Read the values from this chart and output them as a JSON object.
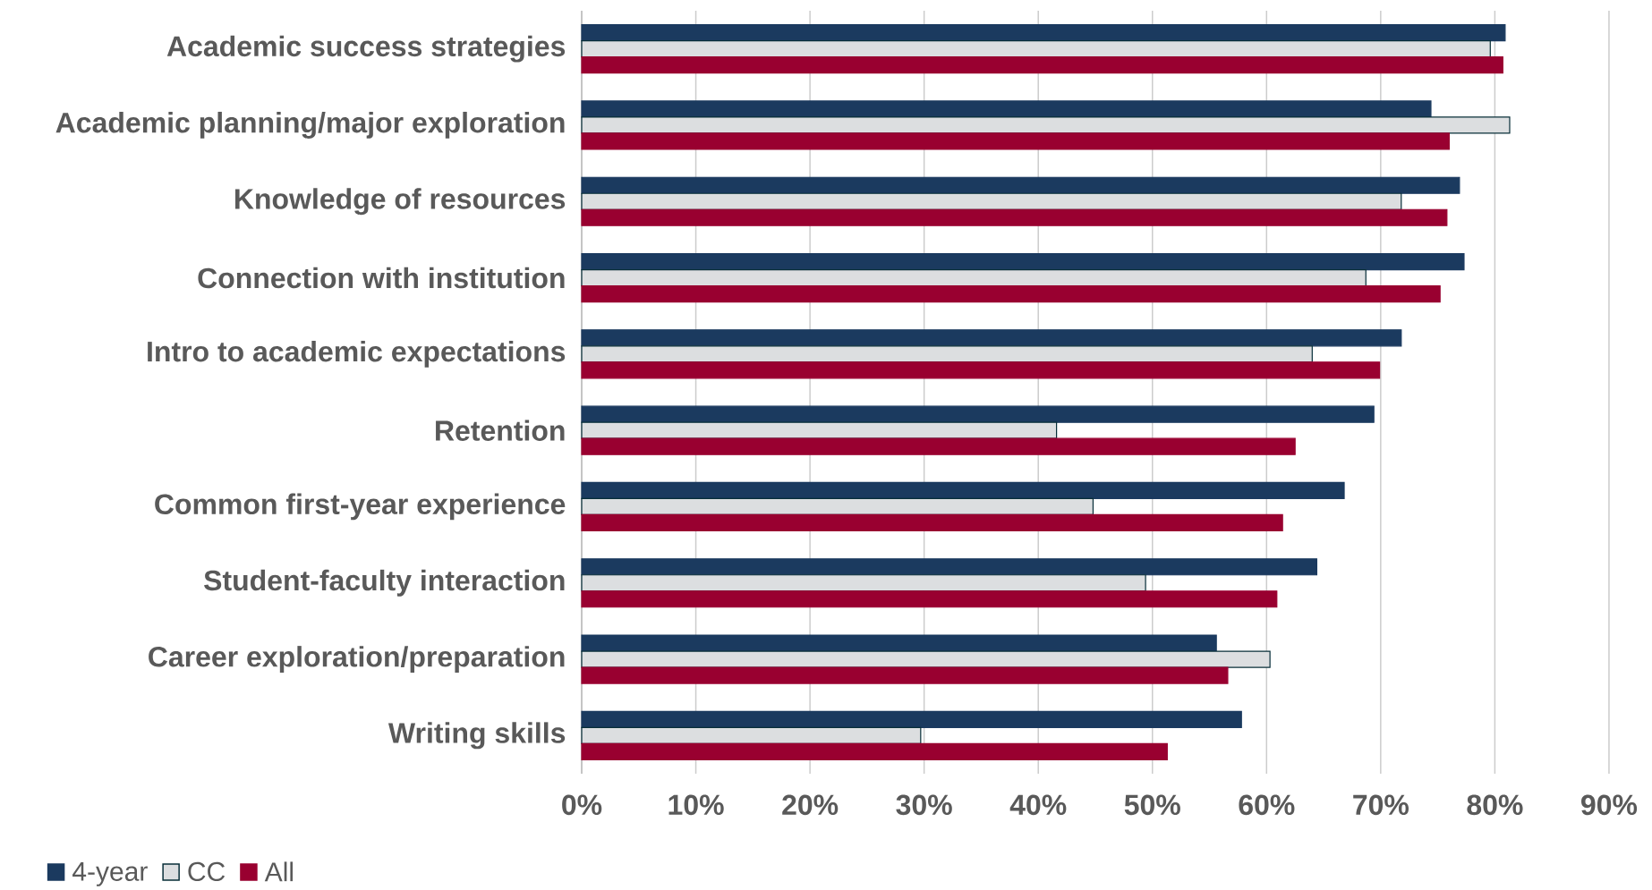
{
  "chart_data": {
    "type": "bar",
    "orientation": "horizontal",
    "categories": [
      "Academic success strategies",
      "Academic planning/major exploration",
      "Knowledge of resources",
      "Connection with institution",
      "Intro to academic expectations",
      "Retention",
      "Common first-year experience",
      "Student-faculty interaction",
      "Career exploration/preparation",
      "Writing skills"
    ],
    "series": [
      {
        "name": "4-year",
        "color": "#1b3a5f",
        "values": [
          80.9,
          74.4,
          76.9,
          77.3,
          71.8,
          69.4,
          66.8,
          64.4,
          55.6,
          57.8
        ]
      },
      {
        "name": "CC",
        "color": "#dcdee0",
        "values": [
          79.6,
          81.3,
          71.8,
          68.7,
          64.0,
          41.6,
          44.8,
          49.4,
          60.3,
          29.7
        ]
      },
      {
        "name": "All",
        "color": "#990030",
        "values": [
          80.7,
          76.0,
          75.8,
          75.2,
          69.9,
          62.5,
          61.4,
          60.9,
          56.6,
          51.3
        ]
      }
    ],
    "xlim": [
      0,
      90
    ],
    "xticks": [
      {
        "value": 0,
        "label": "0%"
      },
      {
        "value": 10,
        "label": "10%"
      },
      {
        "value": 20,
        "label": "20%"
      },
      {
        "value": 30,
        "label": "30%"
      },
      {
        "value": 40,
        "label": "40%"
      },
      {
        "value": 50,
        "label": "50%"
      },
      {
        "value": 60,
        "label": "60%"
      },
      {
        "value": 70,
        "label": "70%"
      },
      {
        "value": 80,
        "label": "80%"
      },
      {
        "value": 90,
        "label": "90%"
      }
    ],
    "grid": "x",
    "legend": "bottom left"
  }
}
